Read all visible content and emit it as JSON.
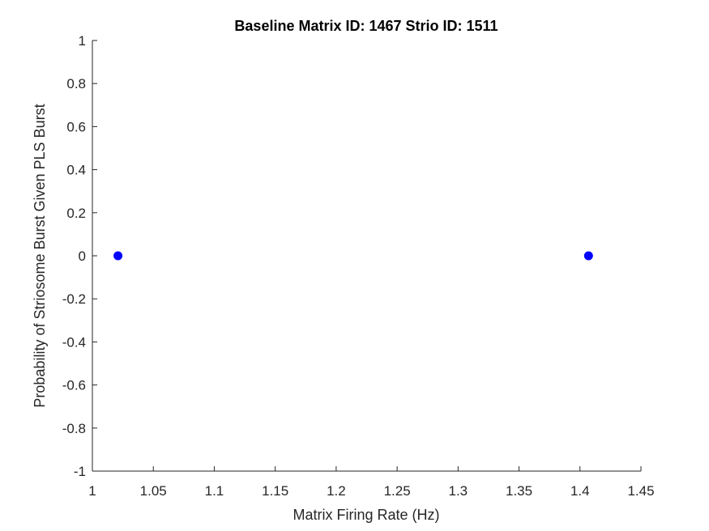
{
  "chart_data": {
    "type": "scatter",
    "title": "Baseline Matrix ID: 1467 Strio ID: 1511",
    "xlabel": "Matrix Firing Rate (Hz)",
    "ylabel": "Probability of Striosome Burst Given PLS Burst",
    "xlim": [
      1,
      1.45
    ],
    "ylim": [
      -1,
      1
    ],
    "xticks": [
      "1",
      "1.05",
      "1.1",
      "1.15",
      "1.2",
      "1.25",
      "1.3",
      "1.35",
      "1.4",
      "1.45"
    ],
    "yticks": [
      "-1",
      "-0.8",
      "-0.6",
      "-0.4",
      "-0.2",
      "0",
      "0.2",
      "0.4",
      "0.6",
      "0.8",
      "1"
    ],
    "grid": false,
    "series": [
      {
        "color": "#0000ff",
        "points": [
          {
            "x": 1.021,
            "y": 0
          },
          {
            "x": 1.407,
            "y": 0
          }
        ]
      }
    ]
  }
}
